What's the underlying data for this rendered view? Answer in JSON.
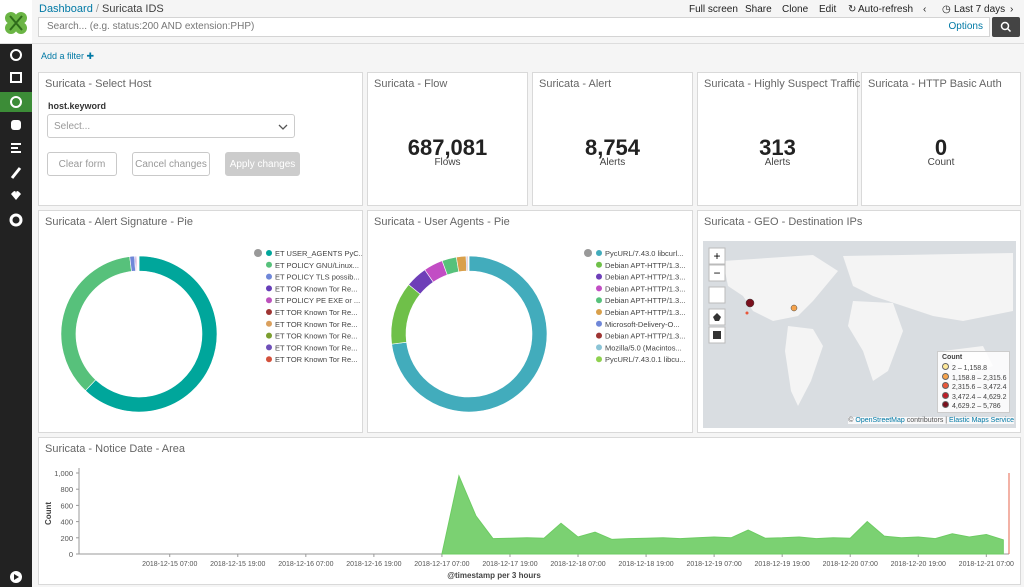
{
  "header": {
    "breadcrumb": [
      "Dashboard",
      "Suricata IDS"
    ],
    "actions": [
      "Full screen",
      "Share",
      "Clone",
      "Edit",
      "Auto-refresh"
    ],
    "time_range": "Last 7 days",
    "search_placeholder": "Search... (e.g. status:200 AND extension:PHP)",
    "options": "Options"
  },
  "filter_bar": {
    "add_filter": "Add a filter"
  },
  "select_host": {
    "title": "Suricata - Select Host",
    "field": "host.keyword",
    "placeholder": "Select...",
    "buttons": [
      "Clear form",
      "Cancel changes",
      "Apply changes"
    ]
  },
  "metrics": [
    {
      "title": "Suricata - Flow",
      "value": "687,081",
      "label": "Flows"
    },
    {
      "title": "Suricata - Alert",
      "value": "8,754",
      "label": "Alerts"
    },
    {
      "title": "Suricata - Highly Suspect Traffic",
      "value": "313",
      "label": "Alerts"
    },
    {
      "title": "Suricata - HTTP Basic Auth",
      "value": "0",
      "label": "Count"
    }
  ],
  "alert_pie": {
    "type": "pie",
    "title": "Suricata - Alert Signature - Pie",
    "slices": [
      {
        "name": "ET USER_AGENTS PyC...",
        "value": 62,
        "color": "#00a69b"
      },
      {
        "name": "ET POLICY GNU/Linux...",
        "value": 36,
        "color": "#57c17b"
      },
      {
        "name": "ET POLICY TLS possib...",
        "value": 1,
        "color": "#6f87d8"
      },
      {
        "name": "ET TOR Known Tor Re...",
        "value": 0.2,
        "color": "#663db8"
      },
      {
        "name": "ET POLICY PE EXE or ...",
        "value": 0.2,
        "color": "#bc52bc"
      },
      {
        "name": "ET TOR Known Tor Re...",
        "value": 0.1,
        "color": "#9e3533"
      },
      {
        "name": "ET TOR Known Tor Re...",
        "value": 0.1,
        "color": "#daa05d"
      },
      {
        "name": "ET TOR Known Tor Re...",
        "value": 0.1,
        "color": "#7b9e2f"
      },
      {
        "name": "ET TOR Known Tor Re...",
        "value": 0.1,
        "color": "#6e4fb8"
      },
      {
        "name": "ET TOR Known Tor Re...",
        "value": 0.1,
        "color": "#d3513c"
      }
    ]
  },
  "agents_pie": {
    "type": "pie",
    "title": "Suricata - User Agents - Pie",
    "slices": [
      {
        "name": "PycURL/7.43.0 libcurl...",
        "value": 73,
        "color": "#42acbc"
      },
      {
        "name": "Debian APT-HTTP/1.3...",
        "value": 13,
        "color": "#6fc049"
      },
      {
        "name": "Debian APT-HTTP/1.3...",
        "value": 4.5,
        "color": "#6e3fb8"
      },
      {
        "name": "Debian APT-HTTP/1.3...",
        "value": 4,
        "color": "#c24dc4"
      },
      {
        "name": "Debian APT-HTTP/1.3...",
        "value": 3,
        "color": "#57c17b"
      },
      {
        "name": "Debian APT-HTTP/1.3...",
        "value": 2,
        "color": "#d9a04b"
      },
      {
        "name": "Microsoft-Delivery-O...",
        "value": 0.2,
        "color": "#6f87d8"
      },
      {
        "name": "Debian APT-HTTP/1.3...",
        "value": 0.2,
        "color": "#9e3533"
      },
      {
        "name": "Mozilla/5.0 (Macintos...",
        "value": 0.1,
        "color": "#8bc4d6"
      },
      {
        "name": "PycURL/7.43.0.1 libcu...",
        "value": 0.1,
        "color": "#8fd14f"
      }
    ]
  },
  "geo_map": {
    "title": "Suricata - GEO - Destination IPs",
    "legend_title": "Count",
    "legend": [
      {
        "label": "2 – 1,158.8",
        "color": "#fee89a"
      },
      {
        "label": "1,158.8 – 2,315.6",
        "color": "#f6a34c"
      },
      {
        "label": "2,315.6 – 3,472.4",
        "color": "#e9573a"
      },
      {
        "label": "3,472.4 – 4,629.2",
        "color": "#bd1d27"
      },
      {
        "label": "4,629.2 – 5,786",
        "color": "#7a0f1c"
      }
    ],
    "attribution": [
      "© ",
      "OpenStreetMap",
      " contributors | ",
      "Elastic Maps Service"
    ]
  },
  "area_chart": {
    "type": "area",
    "title": "Suricata - Notice Date - Area",
    "x_label": "@timestamp per 3 hours",
    "y_label": "Count",
    "color": "#6dcc63",
    "x": [
      "2018-12-17 07:00",
      "2018-12-17 10:00",
      "2018-12-17 13:00",
      "2018-12-17 16:00",
      "2018-12-17 19:00",
      "2018-12-17 22:00",
      "2018-12-18 01:00",
      "2018-12-18 04:00",
      "2018-12-18 07:00",
      "2018-12-18 10:00",
      "2018-12-18 13:00",
      "2018-12-18 16:00",
      "2018-12-18 19:00",
      "2018-12-18 22:00",
      "2018-12-19 01:00",
      "2018-12-19 04:00",
      "2018-12-19 07:00",
      "2018-12-19 10:00",
      "2018-12-19 13:00",
      "2018-12-19 16:00",
      "2018-12-19 19:00",
      "2018-12-19 22:00",
      "2018-12-20 01:00",
      "2018-12-20 04:00",
      "2018-12-20 07:00",
      "2018-12-20 10:00",
      "2018-12-20 13:00",
      "2018-12-20 16:00",
      "2018-12-20 19:00",
      "2018-12-20 22:00",
      "2018-12-21 01:00",
      "2018-12-21 04:00",
      "2018-12-21 07:00",
      "2018-12-21 10:00"
    ],
    "values": [
      0,
      965,
      470,
      190,
      195,
      200,
      195,
      380,
      210,
      270,
      180,
      190,
      195,
      200,
      190,
      200,
      210,
      200,
      295,
      195,
      200,
      210,
      190,
      200,
      195,
      400,
      220,
      200,
      210,
      190,
      250,
      210,
      240,
      175
    ],
    "xlim": [
      "2018-12-14 15:00",
      "2018-12-21 11:00"
    ],
    "xticks": [
      "2018-12-15 07:00",
      "2018-12-15 19:00",
      "2018-12-16 07:00",
      "2018-12-16 19:00",
      "2018-12-17 07:00",
      "2018-12-17 19:00",
      "2018-12-18 07:00",
      "2018-12-18 19:00",
      "2018-12-19 07:00",
      "2018-12-19 19:00",
      "2018-12-20 07:00",
      "2018-12-20 19:00",
      "2018-12-21 07:00"
    ],
    "ylim": [
      0,
      1000
    ],
    "yticks": [
      0,
      200,
      400,
      600,
      800,
      {
        "value": 1000,
        "label": "1,000"
      }
    ],
    "grid": false
  }
}
